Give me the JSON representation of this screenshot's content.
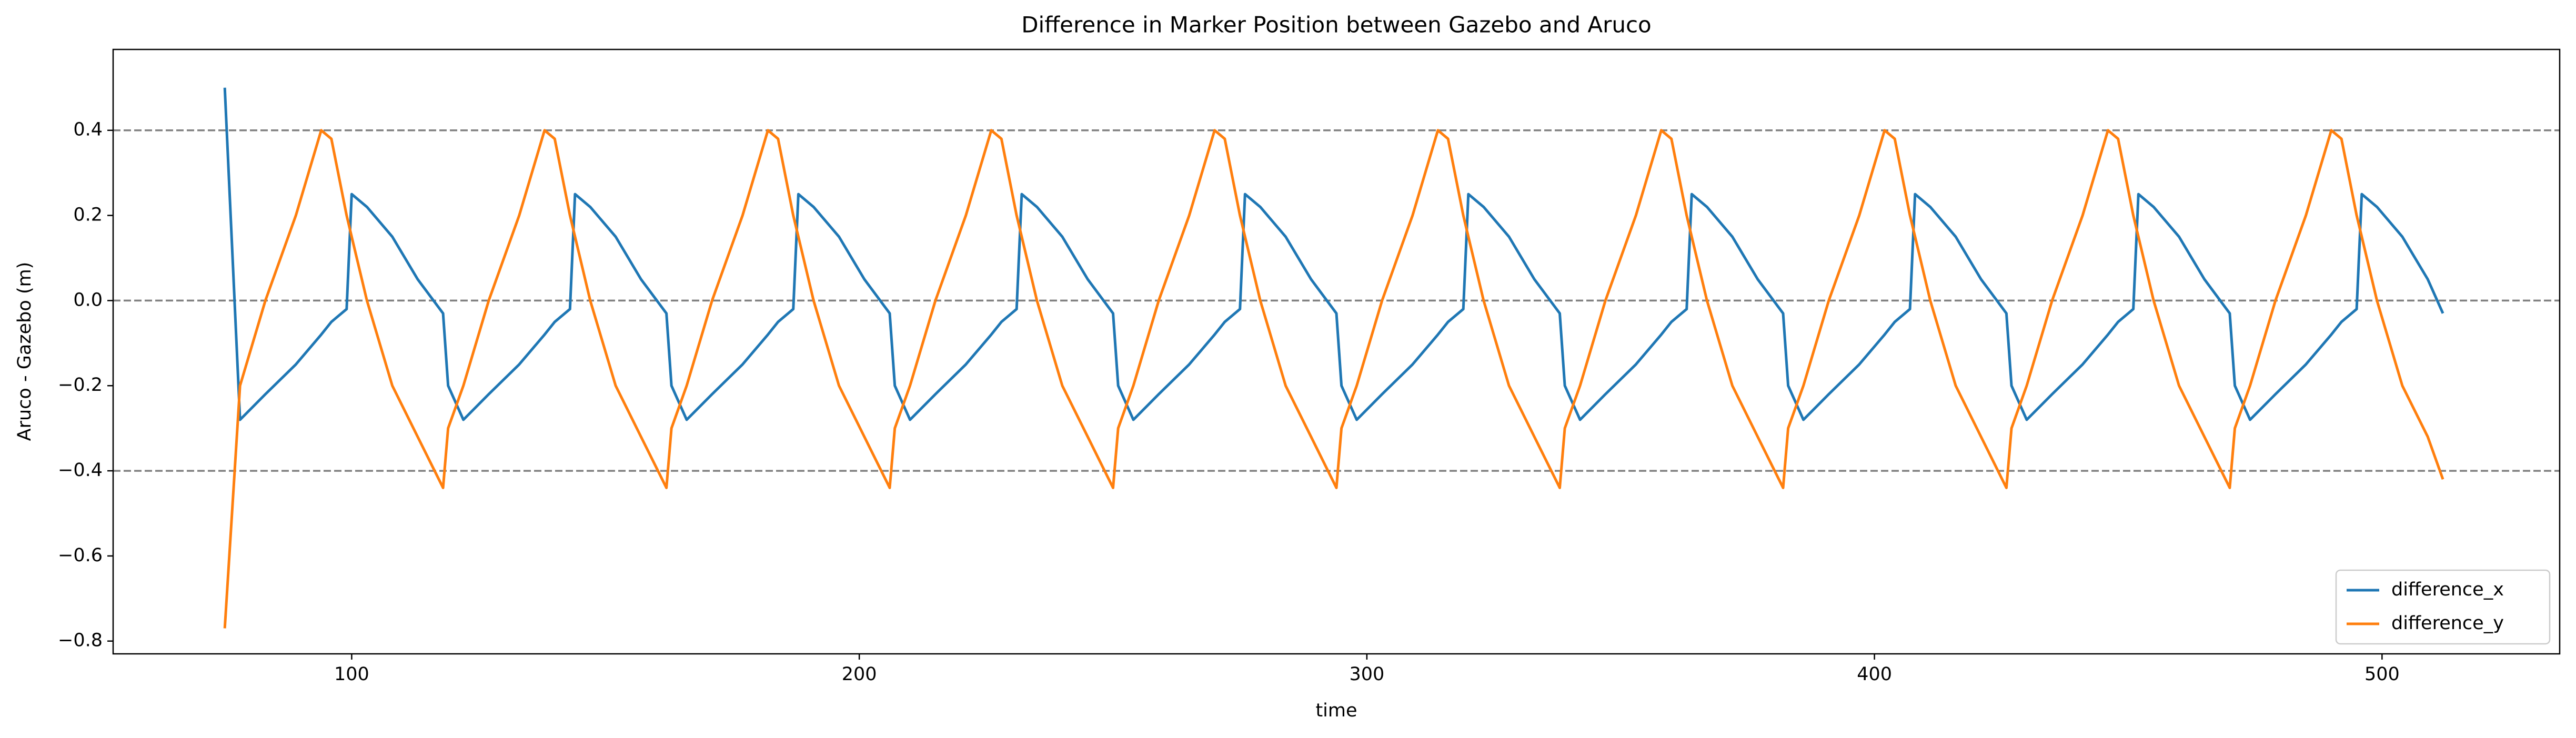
{
  "chart_data": {
    "type": "line",
    "title": "Difference in Marker Position between Gazebo and Aruco",
    "x_label": "time",
    "y_label": "Aruco - Gazebo (m)",
    "x": [
      75,
      78,
      83,
      89,
      94,
      96,
      99,
      100,
      103,
      108,
      113,
      118,
      119,
      122,
      127,
      133,
      138,
      140,
      143,
      144,
      147,
      152,
      157,
      162,
      163,
      166,
      171,
      177,
      182,
      184,
      187,
      188,
      191,
      196,
      201,
      206,
      207,
      210,
      215,
      221,
      226,
      228,
      231,
      232,
      235,
      240,
      245,
      250,
      251,
      254,
      259,
      265,
      270,
      272,
      275,
      276,
      279,
      284,
      289,
      294,
      295,
      298,
      303,
      309,
      314,
      316,
      319,
      320,
      323,
      328,
      333,
      338,
      339,
      342,
      347,
      353,
      358,
      360,
      363,
      364,
      367,
      372,
      377,
      382,
      383,
      386,
      391,
      397,
      402,
      404,
      407,
      408,
      411,
      416,
      421,
      426,
      427,
      430,
      435,
      441,
      446,
      448,
      451,
      452,
      455,
      460,
      465,
      470,
      471,
      474,
      479,
      485,
      490,
      492,
      495,
      496,
      499,
      504,
      509,
      512
    ],
    "series": [
      {
        "name": "difference_x",
        "color": "#1f77b4",
        "values": [
          0.5,
          -0.28,
          -0.22,
          -0.15,
          -0.08,
          -0.05,
          -0.02,
          0.25,
          0.22,
          0.15,
          0.05,
          -0.03,
          -0.2,
          -0.28,
          -0.22,
          -0.15,
          -0.08,
          -0.05,
          -0.02,
          0.25,
          0.22,
          0.15,
          0.05,
          -0.03,
          -0.2,
          -0.28,
          -0.22,
          -0.15,
          -0.08,
          -0.05,
          -0.02,
          0.25,
          0.22,
          0.15,
          0.05,
          -0.03,
          -0.2,
          -0.28,
          -0.22,
          -0.15,
          -0.08,
          -0.05,
          -0.02,
          0.25,
          0.22,
          0.15,
          0.05,
          -0.03,
          -0.2,
          -0.28,
          -0.22,
          -0.15,
          -0.08,
          -0.05,
          -0.02,
          0.25,
          0.22,
          0.15,
          0.05,
          -0.03,
          -0.2,
          -0.28,
          -0.22,
          -0.15,
          -0.08,
          -0.05,
          -0.02,
          0.25,
          0.22,
          0.15,
          0.05,
          -0.03,
          -0.2,
          -0.28,
          -0.22,
          -0.15,
          -0.08,
          -0.05,
          -0.02,
          0.25,
          0.22,
          0.15,
          0.05,
          -0.03,
          -0.2,
          -0.28,
          -0.22,
          -0.15,
          -0.08,
          -0.05,
          -0.02,
          0.25,
          0.22,
          0.15,
          0.05,
          -0.03,
          -0.2,
          -0.28,
          -0.22,
          -0.15,
          -0.08,
          -0.05,
          -0.02,
          0.25,
          0.22,
          0.15,
          0.05,
          -0.03,
          -0.2,
          -0.28,
          -0.22,
          -0.15,
          -0.08,
          -0.05,
          -0.02,
          0.25,
          0.22,
          0.15,
          0.05,
          -0.03
        ]
      },
      {
        "name": "difference_y",
        "color": "#ff7f0e",
        "values": [
          -0.77,
          -0.2,
          0.0,
          0.2,
          0.4,
          0.38,
          0.2,
          0.15,
          0.0,
          -0.2,
          -0.32,
          -0.44,
          -0.3,
          -0.2,
          0.0,
          0.2,
          0.4,
          0.38,
          0.2,
          0.15,
          0.0,
          -0.2,
          -0.32,
          -0.44,
          -0.3,
          -0.2,
          0.0,
          0.2,
          0.4,
          0.38,
          0.2,
          0.15,
          0.0,
          -0.2,
          -0.32,
          -0.44,
          -0.3,
          -0.2,
          0.0,
          0.2,
          0.4,
          0.38,
          0.2,
          0.15,
          0.0,
          -0.2,
          -0.32,
          -0.44,
          -0.3,
          -0.2,
          0.0,
          0.2,
          0.4,
          0.38,
          0.2,
          0.15,
          0.0,
          -0.2,
          -0.32,
          -0.44,
          -0.3,
          -0.2,
          0.0,
          0.2,
          0.4,
          0.38,
          0.2,
          0.15,
          0.0,
          -0.2,
          -0.32,
          -0.44,
          -0.3,
          -0.2,
          0.0,
          0.2,
          0.4,
          0.38,
          0.2,
          0.15,
          0.0,
          -0.2,
          -0.32,
          -0.44,
          -0.3,
          -0.2,
          0.0,
          0.2,
          0.4,
          0.38,
          0.2,
          0.15,
          0.0,
          -0.2,
          -0.32,
          -0.44,
          -0.3,
          -0.2,
          0.0,
          0.2,
          0.4,
          0.38,
          0.2,
          0.15,
          0.0,
          -0.2,
          -0.32,
          -0.44,
          -0.3,
          -0.2,
          0.0,
          0.2,
          0.4,
          0.38,
          0.2,
          0.15,
          0.0,
          -0.2,
          -0.32,
          -0.42
        ]
      }
    ],
    "xlim": [
      53,
      535
    ],
    "xticks": [
      100,
      200,
      300,
      400,
      500
    ],
    "ylim": [
      -0.83,
      0.59
    ],
    "yticks": [
      {
        "value": -0.8,
        "label": "−0.8"
      },
      {
        "value": -0.6,
        "label": "−0.6"
      },
      {
        "value": -0.4,
        "label": "−0.4"
      },
      {
        "value": -0.2,
        "label": "−0.2"
      },
      {
        "value": 0,
        "label": "0.0"
      },
      0.2,
      0.4
    ],
    "hlines": [
      0.4,
      0,
      -0.4
    ],
    "hline_color": "#808080",
    "legend": "lower right"
  }
}
